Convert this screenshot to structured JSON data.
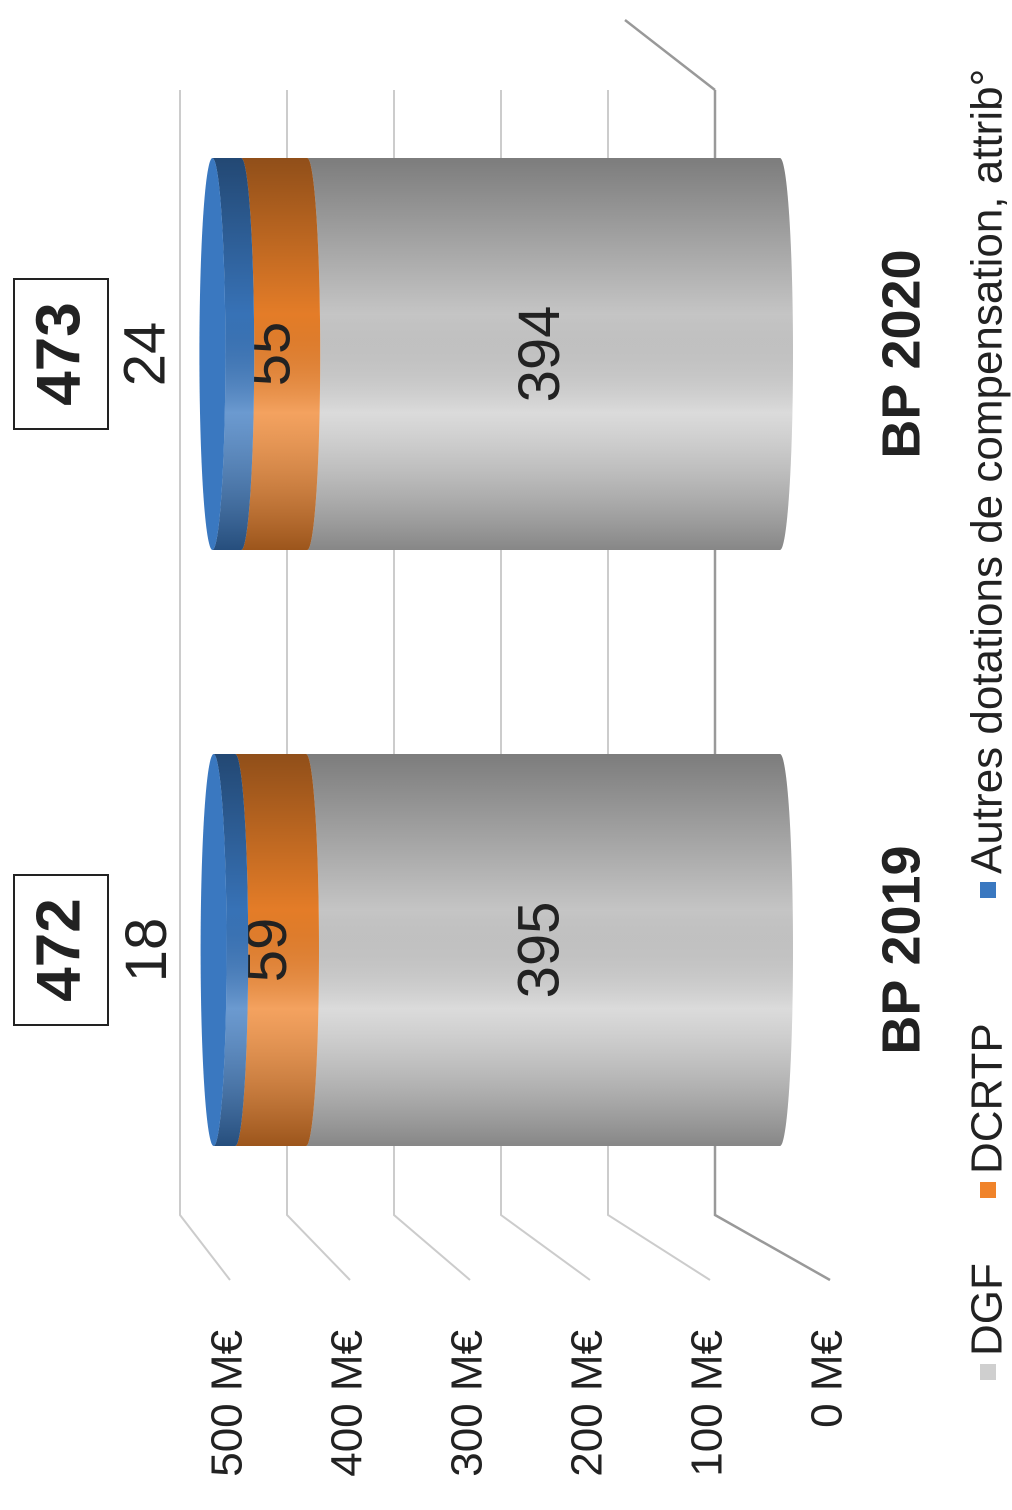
{
  "chart_data": {
    "type": "bar",
    "stacked": true,
    "shape": "cylinder",
    "categories": [
      "BP 2019",
      "BP 2020"
    ],
    "series": [
      {
        "name": "DGF",
        "color": "#cfcfcf",
        "values": [
          395,
          394
        ]
      },
      {
        "name": "DCRTP",
        "color": "#f0832a",
        "values": [
          59,
          55
        ]
      },
      {
        "name": "Autres dotations de compensation, attrib°",
        "color": "#3a78c0",
        "values": [
          18,
          24
        ]
      }
    ],
    "totals": [
      472,
      473
    ],
    "ylim": [
      0,
      500
    ],
    "yticks": [
      {
        "value": 0,
        "label": "0 M€"
      },
      {
        "value": 100,
        "label": "100 M€"
      },
      {
        "value": 200,
        "label": "200 M€"
      },
      {
        "value": 300,
        "label": "300 M€"
      },
      {
        "value": 400,
        "label": "400 M€"
      },
      {
        "value": 500,
        "label": "500 M€"
      }
    ],
    "grid": true,
    "legend": "bottom",
    "rotation": -90
  }
}
